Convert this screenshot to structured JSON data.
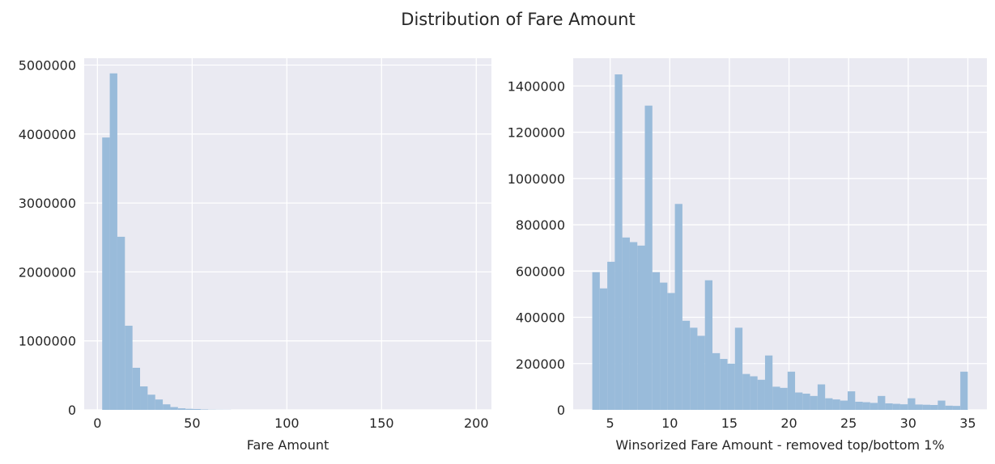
{
  "title": "Distribution of Fare Amount",
  "colors": {
    "bar": "#99bbda",
    "panel_background": "#eaeaf2",
    "grid": "#ffffff",
    "text": "#262626"
  },
  "chart_data": [
    {
      "type": "bar",
      "title": "",
      "xlabel": "Fare Amount",
      "ylabel": "",
      "xlim": [
        -7,
        208
      ],
      "ylim": [
        0,
        5100000
      ],
      "xticks": [
        0,
        50,
        100,
        150,
        200
      ],
      "yticks": [
        0,
        1000000,
        2000000,
        3000000,
        4000000,
        5000000
      ],
      "grid": true,
      "bins": [
        {
          "x0": 2.5,
          "x1": 6.5,
          "count": 3950000
        },
        {
          "x0": 6.5,
          "x1": 10.5,
          "count": 4880000
        },
        {
          "x0": 10.5,
          "x1": 14.5,
          "count": 2510000
        },
        {
          "x0": 14.5,
          "x1": 18.5,
          "count": 1220000
        },
        {
          "x0": 18.5,
          "x1": 22.5,
          "count": 610000
        },
        {
          "x0": 22.5,
          "x1": 26.5,
          "count": 340000
        },
        {
          "x0": 26.5,
          "x1": 30.5,
          "count": 220000
        },
        {
          "x0": 30.5,
          "x1": 34.5,
          "count": 150000
        },
        {
          "x0": 34.5,
          "x1": 38.5,
          "count": 80000
        },
        {
          "x0": 38.5,
          "x1": 42.5,
          "count": 40000
        },
        {
          "x0": 42.5,
          "x1": 46.5,
          "count": 22000
        },
        {
          "x0": 46.5,
          "x1": 50.5,
          "count": 15000
        },
        {
          "x0": 50.5,
          "x1": 54.5,
          "count": 12000
        },
        {
          "x0": 54.5,
          "x1": 58.5,
          "count": 6000
        },
        {
          "x0": 58.5,
          "x1": 62.5,
          "count": 3000
        },
        {
          "x0": 62.5,
          "x1": 66.5,
          "count": 2000
        },
        {
          "x0": 66.5,
          "x1": 70.5,
          "count": 1500
        }
      ]
    },
    {
      "type": "bar",
      "title": "",
      "xlabel": "Winsorized Fare Amount - removed top/bottom 1%",
      "ylabel": "",
      "xlim": [
        1.9,
        36.6
      ],
      "ylim": [
        0,
        1520000
      ],
      "xticks": [
        5,
        10,
        15,
        20,
        25,
        30,
        35
      ],
      "yticks": [
        0,
        200000,
        400000,
        600000,
        800000,
        1000000,
        1200000,
        1400000
      ],
      "grid": true,
      "bin_start": 3.5,
      "bin_width": 0.63,
      "counts": [
        595000,
        525000,
        640000,
        1450000,
        745000,
        725000,
        710000,
        1315000,
        595000,
        550000,
        505000,
        890000,
        385000,
        355000,
        320000,
        560000,
        245000,
        220000,
        200000,
        355000,
        155000,
        145000,
        130000,
        235000,
        100000,
        95000,
        165000,
        75000,
        70000,
        60000,
        110000,
        50000,
        45000,
        40000,
        80000,
        35000,
        33000,
        30000,
        60000,
        28000,
        26000,
        24000,
        50000,
        23000,
        22000,
        21000,
        40000,
        18000,
        17000,
        165000
      ]
    }
  ]
}
